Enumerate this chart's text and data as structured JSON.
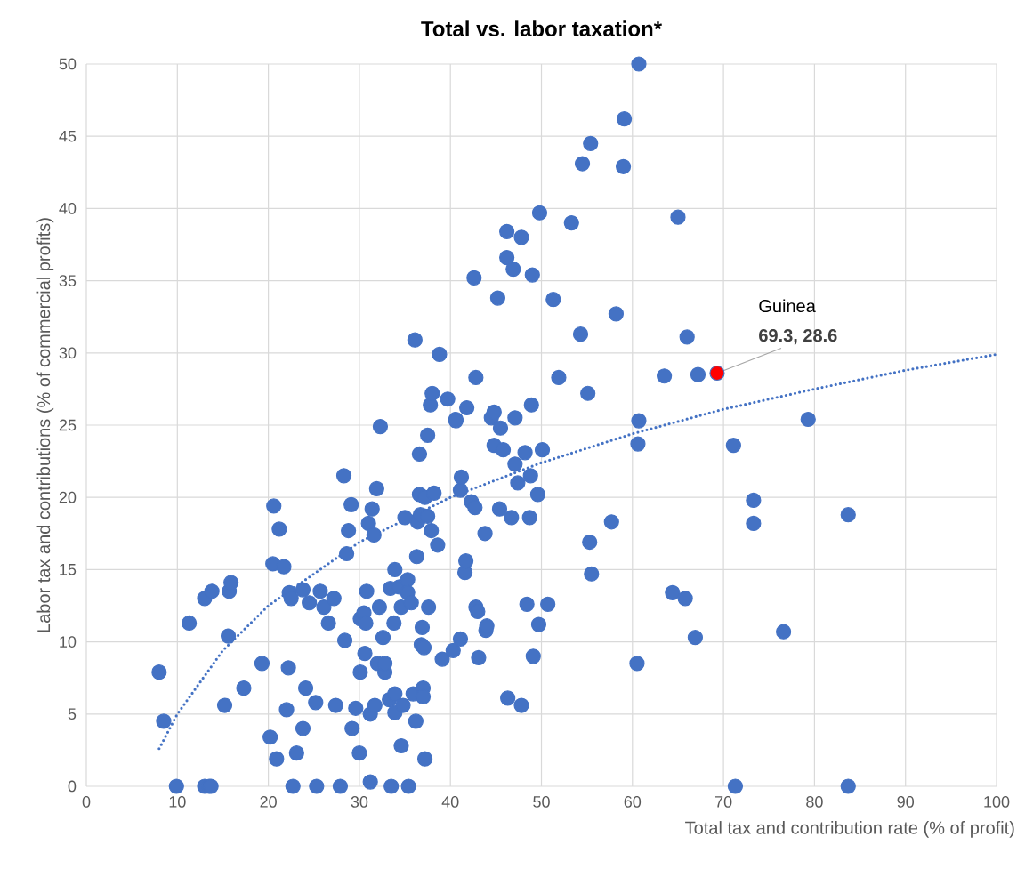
{
  "chart_data": {
    "type": "scatter",
    "title": "Total vs. labor taxation*",
    "xlabel": "Total tax and contribution rate (% of profit)",
    "ylabel": "Labor tax and contributions (% of commercial profits)",
    "xlim": [
      0,
      100
    ],
    "ylim": [
      0,
      50
    ],
    "xticks": [
      0,
      10,
      20,
      30,
      40,
      50,
      60,
      70,
      80,
      90,
      100
    ],
    "yticks": [
      0,
      5,
      10,
      15,
      20,
      25,
      30,
      35,
      40,
      45,
      50
    ],
    "grid": true,
    "marker": "circle",
    "series": [
      {
        "color": "#4472c4",
        "x": [
          8.0,
          8.5,
          9.9,
          11.3,
          13.0,
          13.0,
          13.5,
          13.7,
          13.8,
          15.2,
          15.6,
          15.7,
          15.9,
          17.3,
          19.3,
          20.2,
          20.5,
          20.6,
          20.9,
          21.2,
          21.7,
          22.0,
          22.2,
          22.3,
          22.5,
          22.7,
          23.1,
          23.8,
          23.8,
          24.1,
          24.5,
          25.2,
          25.3,
          25.7,
          26.1,
          26.6,
          27.2,
          27.4,
          27.9,
          28.3,
          28.4,
          28.6,
          28.8,
          29.1,
          29.2,
          29.6,
          30.0,
          30.1,
          30.1,
          30.5,
          30.6,
          30.7,
          30.8,
          31.0,
          31.2,
          31.2,
          31.4,
          31.6,
          31.7,
          31.9,
          32.0,
          32.2,
          32.3,
          32.6,
          32.8,
          32.8,
          33.3,
          33.4,
          33.5,
          33.8,
          33.9,
          33.9,
          33.9,
          34.4,
          34.6,
          34.6,
          34.8,
          35.0,
          35.3,
          35.3,
          35.4,
          35.7,
          35.9,
          36.1,
          36.2,
          36.3,
          36.4,
          36.6,
          36.6,
          36.7,
          36.8,
          36.9,
          37.0,
          37.0,
          37.1,
          37.2,
          37.2,
          37.5,
          37.5,
          37.6,
          37.8,
          37.9,
          38.0,
          38.2,
          38.6,
          38.8,
          39.1,
          39.7,
          40.3,
          40.6,
          40.6,
          41.1,
          41.1,
          41.2,
          41.6,
          41.7,
          41.8,
          42.3,
          42.6,
          42.7,
          42.8,
          42.8,
          43.0,
          43.1,
          43.8,
          43.9,
          44.0,
          44.5,
          44.8,
          44.8,
          45.2,
          45.4,
          45.5,
          45.8,
          46.2,
          46.2,
          46.3,
          46.7,
          46.9,
          47.1,
          47.1,
          47.4,
          47.8,
          47.8,
          48.2,
          48.4,
          48.7,
          48.8,
          48.9,
          49.0,
          49.1,
          49.6,
          49.7,
          49.8,
          50.1,
          50.7,
          51.3,
          51.9,
          53.3,
          54.3,
          54.5,
          55.1,
          55.3,
          55.4,
          55.5,
          57.7,
          58.2,
          59.0,
          59.1,
          60.5,
          60.6,
          60.7,
          60.7,
          63.5,
          64.4,
          65.0,
          65.8,
          66.0,
          66.9,
          67.2,
          71.1,
          71.3,
          73.3,
          73.3,
          76.6,
          79.3,
          83.7,
          83.7
        ],
        "values": [
          7.9,
          4.5,
          0,
          11.3,
          13.0,
          0,
          0,
          0,
          13.5,
          5.6,
          10.4,
          13.5,
          14.1,
          6.8,
          8.5,
          3.4,
          15.4,
          19.4,
          1.9,
          17.8,
          15.2,
          5.3,
          8.2,
          13.4,
          13.0,
          0,
          2.3,
          13.6,
          4.0,
          6.8,
          12.7,
          5.8,
          0,
          13.5,
          12.4,
          11.3,
          13.0,
          5.6,
          0,
          21.5,
          10.1,
          16.1,
          17.7,
          19.5,
          4.0,
          5.4,
          2.3,
          7.9,
          11.6,
          12.0,
          9.2,
          11.3,
          13.5,
          18.2,
          5.0,
          0.3,
          19.2,
          17.4,
          5.6,
          20.6,
          8.5,
          12.4,
          24.9,
          10.3,
          7.9,
          8.5,
          6.0,
          13.7,
          0,
          11.3,
          15.0,
          6.4,
          5.1,
          13.8,
          12.4,
          2.8,
          5.6,
          18.6,
          14.3,
          13.4,
          0,
          12.7,
          6.4,
          30.9,
          4.5,
          15.9,
          18.3,
          23.0,
          20.2,
          18.8,
          9.8,
          11.0,
          6.8,
          6.2,
          9.6,
          1.9,
          20.0,
          18.7,
          24.3,
          12.4,
          26.4,
          17.7,
          27.2,
          20.3,
          16.7,
          29.9,
          8.8,
          26.8,
          9.4,
          25.4,
          25.3,
          10.2,
          20.5,
          21.4,
          14.8,
          15.6,
          26.2,
          19.7,
          35.2,
          19.3,
          12.4,
          28.3,
          12.1,
          8.9,
          17.5,
          10.8,
          11.1,
          25.5,
          25.9,
          23.6,
          33.8,
          19.2,
          24.8,
          23.3,
          38.4,
          36.6,
          6.1,
          18.6,
          35.8,
          25.5,
          22.3,
          21.0,
          38.0,
          5.6,
          23.1,
          12.6,
          18.6,
          21.5,
          26.4,
          35.4,
          9.0,
          20.2,
          11.2,
          39.7,
          23.3,
          12.6,
          33.7,
          28.3,
          39.0,
          31.3,
          43.1,
          27.2,
          16.9,
          44.5,
          14.7,
          18.3,
          32.7,
          42.9,
          46.2,
          8.5,
          23.7,
          25.3,
          50.0,
          28.4,
          13.4,
          39.4,
          13.0,
          31.1,
          10.3,
          28.5,
          23.6,
          0,
          19.8,
          18.2,
          10.7,
          25.4,
          18.8,
          0
        ]
      },
      {
        "name": "Guinea",
        "color": "#ff0000",
        "x": [
          69.3
        ],
        "values": [
          28.6
        ],
        "value_labels": [
          "69.3, 28.6"
        ]
      },
      {
        "type": "line",
        "line_style": "dotted",
        "marker": "none",
        "color": "#4472c4",
        "x": [
          8,
          10,
          15,
          20,
          30,
          40,
          50,
          60,
          70,
          80,
          90,
          100
        ],
        "values": [
          2.6,
          5.0,
          9.4,
          12.5,
          16.9,
          20.0,
          22.4,
          24.4,
          26.1,
          27.5,
          28.8,
          29.9
        ]
      }
    ]
  }
}
